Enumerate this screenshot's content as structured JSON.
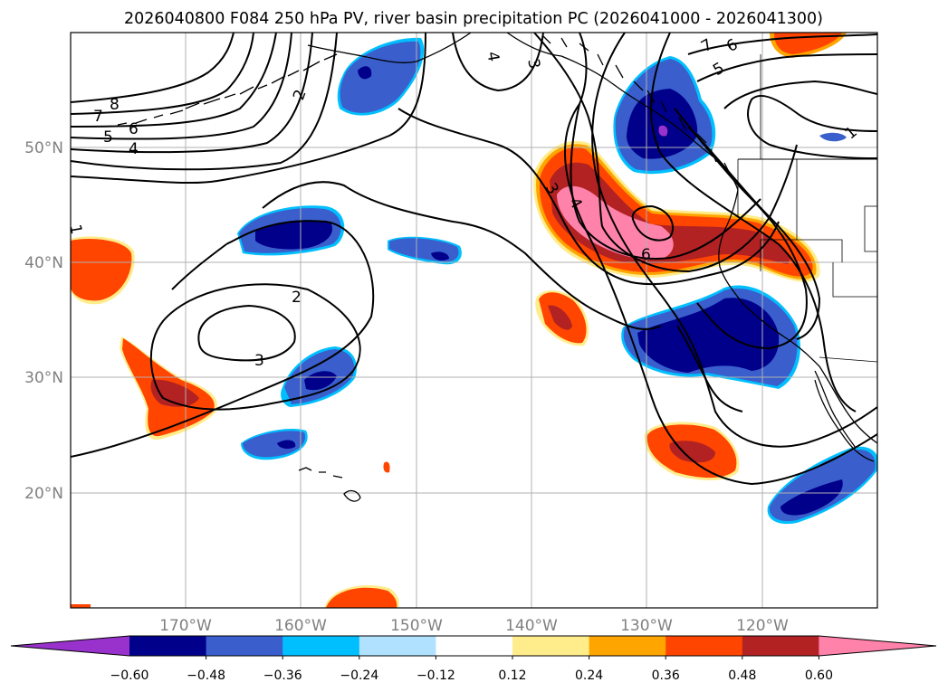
{
  "title": "2026040800 F084 250 hPa PV, river basin precipitation PC (2026041000 - 2026041300)",
  "map": {
    "lon_range": [
      -180,
      -110
    ],
    "lat_range": [
      10,
      60
    ],
    "lon_labels": [
      "170°W",
      "160°W",
      "150°W",
      "140°W",
      "130°W",
      "120°W"
    ],
    "lat_labels": [
      "20°N",
      "30°N",
      "40°N",
      "50°N"
    ],
    "contour_labels": [
      "8",
      "7",
      "6",
      "5",
      "4",
      "1",
      "2",
      "3",
      "2",
      "4",
      "3",
      "3",
      "4",
      "6",
      "7",
      "6",
      "5",
      "1"
    ]
  },
  "colorbar": {
    "ticks": [
      "−0.60",
      "−0.48",
      "−0.36",
      "−0.24",
      "−0.12",
      "0.12",
      "0.24",
      "0.36",
      "0.48",
      "0.60"
    ],
    "colors": [
      "#9932cc",
      "#00008b",
      "#3a5fcd",
      "#00bfff",
      "#b0e2ff",
      "#ffffff",
      "#ffec8b",
      "#ffa500",
      "#ff4500",
      "#b22222",
      "#ff82ab"
    ]
  }
}
